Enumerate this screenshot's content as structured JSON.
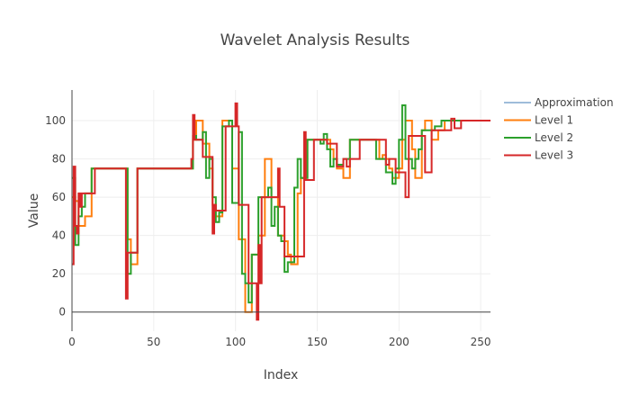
{
  "chart_data": {
    "type": "line",
    "title": "Wavelet Analysis Results",
    "xlabel": "Index",
    "ylabel": "Value",
    "xlim": [
      0,
      256
    ],
    "ylim": [
      -10,
      116
    ],
    "xticks": [
      0,
      50,
      100,
      150,
      200,
      250
    ],
    "yticks": [
      0,
      20,
      40,
      60,
      80,
      100
    ],
    "grid": true,
    "legend_position": "top-right",
    "series": [
      {
        "name": "Approximation",
        "color": "#9ebcda",
        "x": [
          0,
          256
        ],
        "y": [
          null,
          null
        ]
      },
      {
        "name": "Level 1",
        "color": "#ff7f0e",
        "x": [
          0,
          2,
          4,
          6,
          8,
          10,
          12,
          14,
          16,
          18,
          20,
          22,
          24,
          26,
          28,
          30,
          32,
          34,
          36,
          38,
          40,
          42,
          72,
          74,
          76,
          78,
          80,
          82,
          84,
          86,
          88,
          90,
          92,
          94,
          96,
          98,
          100,
          102,
          104,
          106,
          108,
          110,
          112,
          114,
          116,
          118,
          120,
          122,
          124,
          126,
          128,
          130,
          132,
          134,
          136,
          138,
          140,
          142,
          144,
          146,
          148,
          150,
          152,
          154,
          156,
          158,
          160,
          162,
          164,
          166,
          168,
          170,
          172,
          174,
          176,
          178,
          180,
          182,
          184,
          186,
          188,
          190,
          192,
          194,
          196,
          198,
          200,
          202,
          204,
          206,
          208,
          210,
          212,
          214,
          216,
          218,
          220,
          222,
          224,
          226,
          228,
          230,
          232,
          234,
          236,
          238,
          240,
          242,
          244,
          246,
          248,
          250,
          252,
          254,
          256
        ],
        "y": [
          60,
          58,
          45,
          45,
          50,
          50,
          75,
          75,
          75,
          75,
          75,
          75,
          75,
          75,
          75,
          75,
          75,
          38,
          25,
          25,
          75,
          75,
          75,
          90,
          100,
          100,
          88,
          88,
          75,
          56,
          50,
          50,
          100,
          100,
          100,
          75,
          75,
          38,
          38,
          0,
          0,
          30,
          30,
          40,
          40,
          80,
          80,
          60,
          60,
          40,
          40,
          37,
          30,
          25,
          25,
          62,
          70,
          70,
          90,
          90,
          90,
          90,
          90,
          90,
          90,
          85,
          80,
          75,
          75,
          70,
          70,
          90,
          90,
          90,
          90,
          90,
          90,
          90,
          90,
          90,
          80,
          82,
          80,
          75,
          70,
          70,
          75,
          90,
          100,
          100,
          85,
          70,
          70,
          95,
          100,
          100,
          90,
          90,
          95,
          95,
          100,
          100,
          100,
          100,
          100,
          100,
          100,
          100,
          100,
          100,
          100,
          100,
          100,
          100,
          100
        ]
      },
      {
        "name": "Level 2",
        "color": "#2ca02c",
        "x": [
          0,
          2,
          4,
          6,
          8,
          10,
          12,
          14,
          16,
          18,
          20,
          22,
          24,
          26,
          28,
          30,
          32,
          34,
          36,
          38,
          40,
          42,
          72,
          74,
          76,
          78,
          80,
          82,
          84,
          86,
          88,
          90,
          92,
          94,
          96,
          98,
          100,
          102,
          104,
          106,
          108,
          110,
          112,
          114,
          116,
          118,
          120,
          122,
          124,
          126,
          128,
          130,
          132,
          134,
          136,
          138,
          140,
          142,
          144,
          146,
          148,
          150,
          152,
          154,
          156,
          158,
          160,
          162,
          164,
          166,
          168,
          170,
          172,
          174,
          176,
          178,
          180,
          182,
          184,
          186,
          188,
          190,
          192,
          194,
          196,
          198,
          200,
          202,
          204,
          206,
          208,
          210,
          212,
          214,
          216,
          218,
          220,
          222,
          224,
          226,
          228,
          230,
          232,
          234,
          236,
          238,
          240,
          242,
          244,
          246,
          248,
          250,
          252,
          254,
          256
        ],
        "y": [
          70,
          35,
          50,
          55,
          62,
          62,
          75,
          75,
          75,
          75,
          75,
          75,
          75,
          75,
          75,
          75,
          75,
          20,
          31,
          31,
          75,
          75,
          75,
          92,
          90,
          90,
          94,
          70,
          80,
          60,
          47,
          52,
          97,
          97,
          100,
          57,
          57,
          94,
          20,
          15,
          5,
          30,
          30,
          60,
          60,
          60,
          65,
          45,
          55,
          40,
          37,
          21,
          26,
          26,
          65,
          80,
          70,
          70,
          90,
          90,
          90,
          90,
          88,
          93,
          85,
          76,
          80,
          77,
          77,
          80,
          80,
          90,
          90,
          90,
          90,
          90,
          90,
          90,
          90,
          80,
          80,
          80,
          73,
          73,
          67,
          75,
          90,
          108,
          80,
          80,
          75,
          80,
          85,
          95,
          95,
          95,
          95,
          97,
          97,
          100,
          100,
          100,
          100,
          100,
          100,
          100,
          100,
          100,
          100,
          100,
          100,
          100,
          100,
          100,
          100
        ]
      },
      {
        "name": "Level 3",
        "color": "#d62728",
        "x": [
          0,
          1,
          2,
          3,
          4,
          5,
          6,
          8,
          10,
          12,
          14,
          16,
          18,
          20,
          22,
          24,
          26,
          28,
          30,
          32,
          33,
          34,
          36,
          38,
          40,
          42,
          72,
          73,
          74,
          75,
          76,
          78,
          80,
          82,
          84,
          86,
          87,
          88,
          90,
          92,
          94,
          96,
          98,
          100,
          101,
          102,
          104,
          106,
          108,
          110,
          112,
          113,
          114,
          115,
          116,
          118,
          120,
          122,
          124,
          126,
          127,
          128,
          130,
          132,
          134,
          136,
          138,
          140,
          142,
          143,
          144,
          146,
          148,
          150,
          152,
          154,
          156,
          158,
          160,
          162,
          164,
          166,
          168,
          170,
          172,
          174,
          176,
          178,
          180,
          182,
          184,
          186,
          188,
          190,
          192,
          194,
          196,
          198,
          200,
          202,
          204,
          206,
          208,
          210,
          212,
          214,
          216,
          218,
          220,
          222,
          224,
          226,
          228,
          230,
          232,
          234,
          236,
          238,
          240,
          242,
          244,
          246,
          248,
          250,
          252,
          254,
          256
        ],
        "y": [
          25,
          76,
          45,
          41,
          62,
          55,
          62,
          62,
          62,
          62,
          75,
          75,
          75,
          75,
          75,
          75,
          75,
          75,
          75,
          75,
          7,
          31,
          31,
          31,
          75,
          75,
          75,
          80,
          103,
          90,
          90,
          90,
          81,
          81,
          81,
          41,
          56,
          53,
          53,
          53,
          97,
          97,
          97,
          109,
          97,
          56,
          56,
          56,
          15,
          15,
          15,
          -4,
          35,
          15,
          60,
          60,
          60,
          60,
          60,
          75,
          55,
          55,
          29,
          29,
          29,
          29,
          29,
          29,
          94,
          69,
          69,
          69,
          90,
          90,
          90,
          90,
          88,
          88,
          88,
          76,
          76,
          80,
          76,
          80,
          80,
          80,
          90,
          90,
          90,
          90,
          90,
          90,
          90,
          90,
          77,
          80,
          80,
          73,
          73,
          73,
          60,
          92,
          92,
          92,
          92,
          92,
          73,
          73,
          95,
          95,
          95,
          95,
          95,
          95,
          101,
          96,
          96,
          100,
          100,
          100,
          100,
          100,
          100,
          100,
          100,
          100,
          100
        ]
      }
    ]
  }
}
